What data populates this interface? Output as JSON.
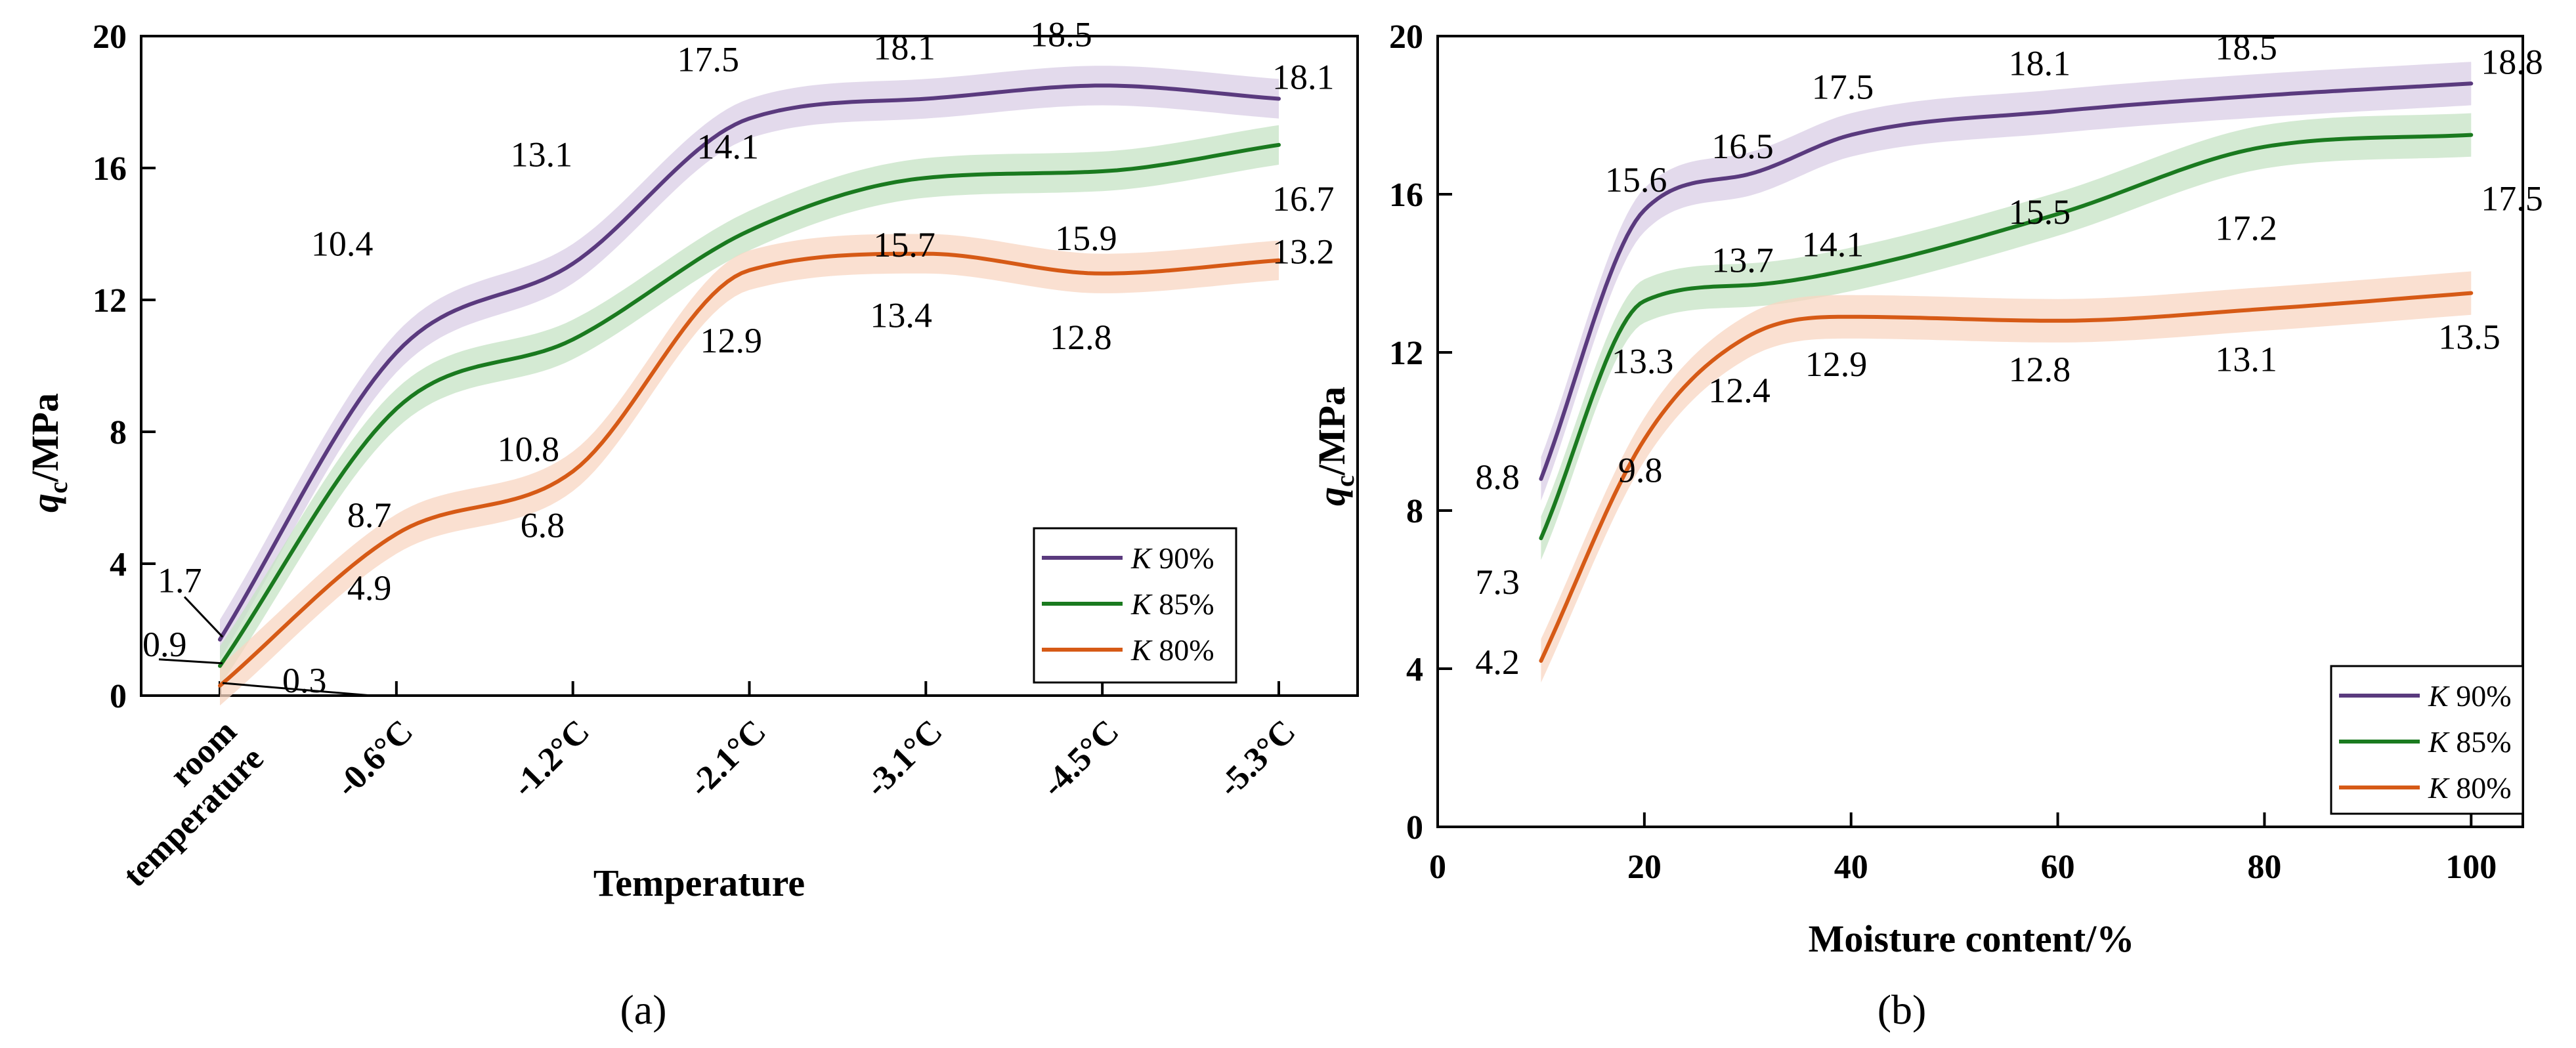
{
  "chart_data": [
    {
      "type": "line",
      "panel_label": "(a)",
      "xlabel": "Temperature",
      "ylabel": {
        "q": "q",
        "sub": "c",
        "unit": "/MPa"
      },
      "ylim": [
        0,
        20
      ],
      "yticks": [
        "0",
        "4",
        "8",
        "12",
        "16",
        "20"
      ],
      "categories": [
        [
          "room",
          "temperature"
        ],
        [
          "-0.6°C"
        ],
        [
          "-1.2°C"
        ],
        [
          "-2.1°C"
        ],
        [
          "-3.1°C"
        ],
        [
          "-4.5°C"
        ],
        [
          "-5.3°C"
        ]
      ],
      "legend_position": "bottom-right",
      "series": [
        {
          "name": "K 90%",
          "k": "K",
          "pct": " 90%",
          "color": "#5a3a7e",
          "band": "#d9cde6",
          "values": [
            1.7,
            10.4,
            13.1,
            17.5,
            18.1,
            18.5,
            18.1
          ],
          "labels": [
            "1.7",
            "10.4",
            "13.1",
            "17.5",
            "18.1",
            "18.5",
            "18.1"
          ]
        },
        {
          "name": "K 85%",
          "k": "K",
          "pct": " 85%",
          "color": "#1a7a1f",
          "band": "#c5e3c4",
          "values": [
            0.9,
            8.7,
            10.8,
            14.1,
            15.7,
            15.9,
            16.7
          ],
          "labels": [
            "0.9",
            "8.7",
            "10.8",
            "14.1",
            "15.7",
            "15.9",
            "16.7"
          ]
        },
        {
          "name": "K 80%",
          "k": "K",
          "pct": " 80%",
          "color": "#d65a16",
          "band": "#f8d6c1",
          "values": [
            0.3,
            4.9,
            6.8,
            12.9,
            13.4,
            12.8,
            13.2
          ],
          "labels": [
            "0.3",
            "4.9",
            "6.8",
            "12.9",
            "13.4",
            "12.8",
            "13.2"
          ]
        }
      ]
    },
    {
      "type": "line",
      "panel_label": "(b)",
      "xlabel": "Moisture content/%",
      "ylabel": {
        "q": "q",
        "sub": "c",
        "unit": "/MPa"
      },
      "xlim": [
        0,
        105
      ],
      "xticks": [
        "0",
        "20",
        "40",
        "60",
        "80",
        "100"
      ],
      "ylim": [
        0,
        20
      ],
      "yticks": [
        "0",
        "4",
        "8",
        "12",
        "16",
        "20"
      ],
      "legend_position": "bottom-right",
      "series": [
        {
          "name": "K 90%",
          "k": "K",
          "pct": " 90%",
          "color": "#5a3a7e",
          "band": "#d9cde6",
          "x": [
            10,
            20,
            30,
            40,
            60,
            80,
            100
          ],
          "values": [
            8.8,
            15.6,
            16.5,
            17.5,
            18.1,
            18.5,
            18.8
          ],
          "labels": [
            "8.8",
            "15.6",
            "16.5",
            "17.5",
            "18.1",
            "18.5",
            "18.8"
          ]
        },
        {
          "name": "K 85%",
          "k": "K",
          "pct": " 85%",
          "color": "#1a7a1f",
          "band": "#c5e3c4",
          "x": [
            10,
            20,
            30,
            40,
            60,
            80,
            100
          ],
          "values": [
            7.3,
            13.3,
            13.7,
            14.1,
            15.5,
            17.2,
            17.5
          ],
          "labels": [
            "7.3",
            "13.3",
            "13.7",
            "14.1",
            "15.5",
            "17.2",
            "17.5"
          ]
        },
        {
          "name": "K 80%",
          "k": "K",
          "pct": " 80%",
          "color": "#d65a16",
          "band": "#f8d6c1",
          "x": [
            10,
            20,
            30,
            40,
            60,
            80,
            100
          ],
          "values": [
            4.2,
            9.8,
            12.4,
            12.9,
            12.8,
            13.1,
            13.5
          ],
          "labels": [
            "4.2",
            "9.8",
            "12.4",
            "12.9",
            "12.8",
            "13.1",
            "13.5"
          ]
        }
      ]
    }
  ]
}
